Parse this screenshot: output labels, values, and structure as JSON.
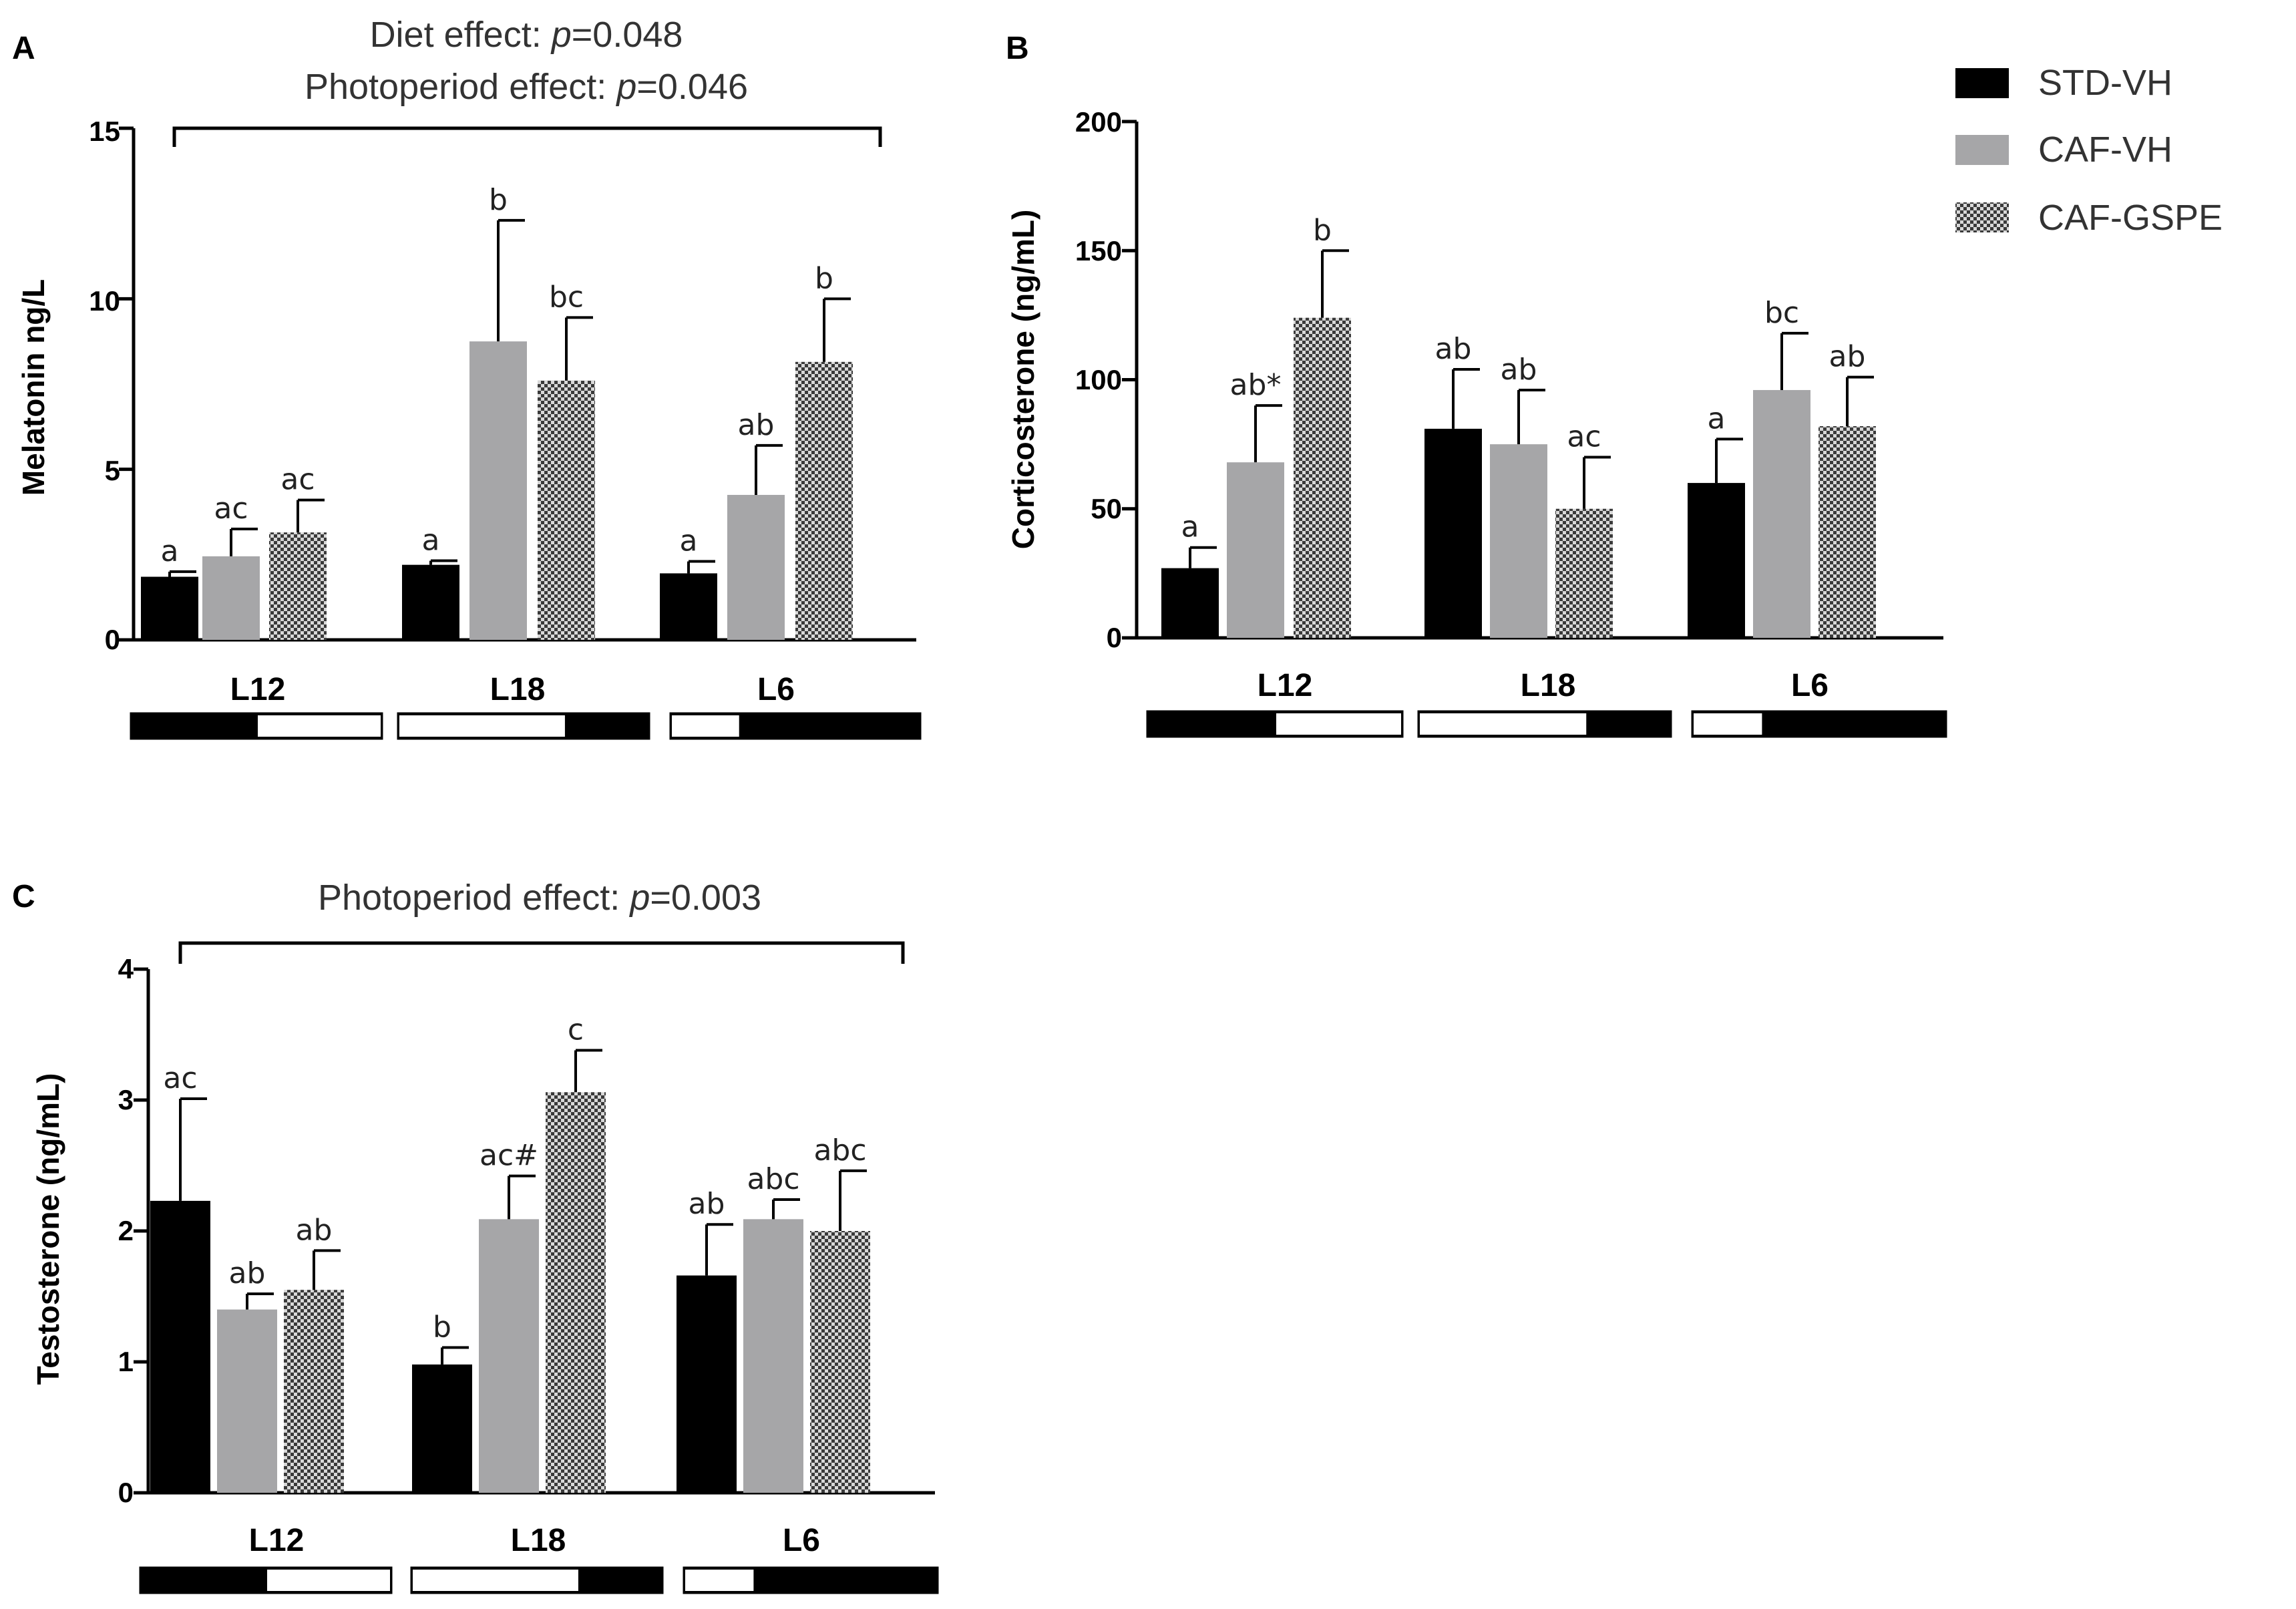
{
  "legend": [
    {
      "name": "STD-VH",
      "fill": "black"
    },
    {
      "name": "CAF-VH",
      "fill": "gray"
    },
    {
      "name": "CAF-GSPE",
      "fill": "checker"
    }
  ],
  "colors": {
    "std": "#000000",
    "caf": "#a6a6a8",
    "gspe_dark": "#3a3a3a",
    "gspe_light": "#d8d8d8",
    "axis": "#000000"
  },
  "chart_data": [
    {
      "panel": "A",
      "type": "bar",
      "title_lines": [
        {
          "text": "Diet effect: ",
          "italic": "p",
          "value": "=0.048"
        },
        {
          "text": "Photoperiod effect: ",
          "italic": "p",
          "value": "=0.046"
        }
      ],
      "ylabel": "Melatonin ng/L",
      "ylim": [
        0,
        15
      ],
      "yticks": [
        0,
        5,
        10,
        15
      ],
      "categories": [
        "L12",
        "L18",
        "L6"
      ],
      "photoperiod": [
        {
          "light_fraction": 0.5,
          "light_side": "right"
        },
        {
          "light_fraction": 0.67,
          "light_side": "left"
        },
        {
          "light_fraction": 0.28,
          "light_side": "left"
        }
      ],
      "series": [
        {
          "name": "STD-VH",
          "values": [
            1.85,
            2.2,
            1.95
          ],
          "errors": [
            0.15,
            0.12,
            0.35
          ],
          "letters": [
            "a",
            "a",
            "a"
          ]
        },
        {
          "name": "CAF-VH",
          "values": [
            2.45,
            8.75,
            4.25
          ],
          "errors": [
            0.8,
            3.55,
            1.45
          ],
          "letters": [
            "ac",
            "b",
            "ab"
          ]
        },
        {
          "name": "CAF-GSPE",
          "values": [
            3.15,
            7.6,
            8.15
          ],
          "errors": [
            0.95,
            1.85,
            1.85
          ],
          "letters": [
            "ac",
            "bc",
            "b"
          ]
        }
      ]
    },
    {
      "panel": "B",
      "type": "bar",
      "title_lines": [],
      "ylabel": "Corticosterone (ng/mL)",
      "ylim": [
        0,
        200
      ],
      "yticks": [
        0,
        50,
        100,
        150,
        200
      ],
      "categories": [
        "L12",
        "L18",
        "L6"
      ],
      "photoperiod": [
        {
          "light_fraction": 0.5,
          "light_side": "right"
        },
        {
          "light_fraction": 0.67,
          "light_side": "left"
        },
        {
          "light_fraction": 0.28,
          "light_side": "left"
        }
      ],
      "series": [
        {
          "name": "STD-VH",
          "values": [
            27,
            81,
            60
          ],
          "errors": [
            8,
            23,
            17
          ],
          "letters": [
            "a",
            "ab",
            "a"
          ]
        },
        {
          "name": "CAF-VH",
          "values": [
            68,
            75,
            96
          ],
          "errors": [
            22,
            21,
            22
          ],
          "letters": [
            "ab*",
            "ab",
            "bc"
          ]
        },
        {
          "name": "CAF-GSPE",
          "values": [
            124,
            50,
            82
          ],
          "errors": [
            26,
            20,
            19
          ],
          "letters": [
            "b",
            "ac",
            "ab"
          ]
        }
      ]
    },
    {
      "panel": "C",
      "type": "bar",
      "title_lines": [
        {
          "text": "Photoperiod effect: ",
          "italic": "p",
          "value": "=0.003"
        }
      ],
      "ylabel": "Testosterone (ng/mL)",
      "ylim": [
        0,
        4
      ],
      "yticks": [
        0,
        1,
        2,
        3,
        4
      ],
      "categories": [
        "L12",
        "L18",
        "L6"
      ],
      "photoperiod": [
        {
          "light_fraction": 0.5,
          "light_side": "right"
        },
        {
          "light_fraction": 0.67,
          "light_side": "left"
        },
        {
          "light_fraction": 0.28,
          "light_side": "left"
        }
      ],
      "series": [
        {
          "name": "STD-VH",
          "values": [
            2.23,
            0.98,
            1.66
          ],
          "errors": [
            0.78,
            0.13,
            0.39
          ],
          "letters": [
            "ac",
            "b",
            "ab"
          ]
        },
        {
          "name": "CAF-VH",
          "values": [
            1.4,
            2.09,
            2.09
          ],
          "errors": [
            0.12,
            0.33,
            0.15
          ],
          "letters": [
            "ab",
            "ac#",
            "abc"
          ]
        },
        {
          "name": "CAF-GSPE",
          "values": [
            1.55,
            3.06,
            2.0
          ],
          "errors": [
            0.3,
            0.32,
            0.46
          ],
          "letters": [
            "ab",
            "c",
            "abc"
          ]
        }
      ]
    }
  ]
}
